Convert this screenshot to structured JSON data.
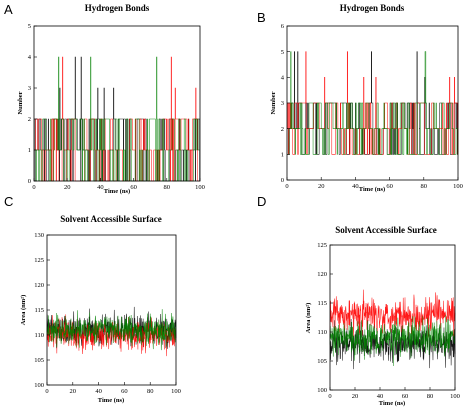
{
  "chart_data": [
    {
      "panel": "A",
      "type": "line",
      "title": "Hydrogen Bonds",
      "xlabel": "Time (ns)",
      "ylabel": "Number",
      "xlim": [
        0,
        100
      ],
      "ylim": [
        0,
        5
      ],
      "xticks": [
        0,
        20,
        40,
        60,
        80,
        100
      ],
      "yticks": [
        0,
        1,
        2,
        3,
        4,
        5
      ],
      "grid": false,
      "series_colors": [
        "#000000",
        "#ff0000",
        "#008000"
      ],
      "description_values": {
        "typical_range": [
          0,
          2
        ],
        "max_observed": 4
      }
    },
    {
      "panel": "B",
      "type": "line",
      "title": "Hydrogen Bonds",
      "xlabel": "Time (ns)",
      "ylabel": "Number",
      "xlim": [
        0,
        100
      ],
      "ylim": [
        0,
        6
      ],
      "xticks": [
        0,
        20,
        40,
        60,
        80,
        100
      ],
      "yticks": [
        0,
        1,
        2,
        3,
        4,
        5,
        6
      ],
      "grid": false,
      "series_colors": [
        "#000000",
        "#ff0000",
        "#008000"
      ],
      "description_values": {
        "typical_range": [
          1,
          3
        ],
        "max_observed": 5
      }
    },
    {
      "panel": "C",
      "type": "line",
      "title": "Solvent Accessible Surface",
      "xlabel": "Time (ns)",
      "ylabel": "Area (nm²)",
      "xlim": [
        0,
        100
      ],
      "ylim": [
        100,
        130
      ],
      "xticks": [
        0,
        20,
        40,
        60,
        80,
        100
      ],
      "yticks": [
        100,
        105,
        110,
        115,
        120,
        125,
        130
      ],
      "grid": false,
      "series_colors": [
        "#000000",
        "#ff0000",
        "#008000"
      ],
      "description_values": {
        "mean": [
          111,
          110,
          111
        ]
      }
    },
    {
      "panel": "D",
      "type": "line",
      "title": "Solvent Accessible Surface",
      "xlabel": "Time (ns)",
      "ylabel": "Area (nm²)",
      "xlim": [
        0,
        100
      ],
      "ylim": [
        100,
        125
      ],
      "xticks": [
        0,
        20,
        40,
        60,
        80,
        100
      ],
      "yticks": [
        100,
        105,
        110,
        115,
        120,
        125
      ],
      "grid": false,
      "series_colors": [
        "#000000",
        "#ff0000",
        "#008000"
      ],
      "description_values": {
        "mean": [
          108,
          113,
          109
        ]
      }
    }
  ]
}
